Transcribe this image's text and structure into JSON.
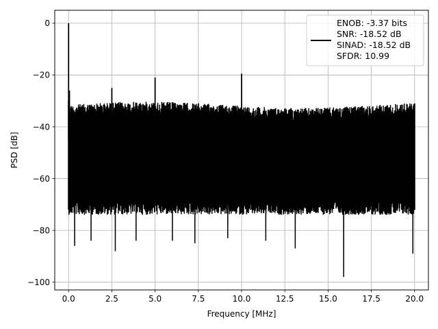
{
  "chart_data": {
    "type": "line",
    "xlabel": "Frequency [MHz]",
    "ylabel": "PSD [dB]",
    "xlim": [
      -0.8,
      20.8
    ],
    "ylim": [
      -103,
      5
    ],
    "xticks": [
      0.0,
      2.5,
      5.0,
      7.5,
      10.0,
      12.5,
      15.0,
      17.5,
      20.0
    ],
    "xtick_labels": [
      "0.0",
      "2.5",
      "5.0",
      "7.5",
      "10.0",
      "12.5",
      "15.0",
      "17.5",
      "20.0"
    ],
    "yticks": [
      0,
      -20,
      -40,
      -60,
      -80,
      -100
    ],
    "ytick_labels": [
      "0",
      "−20",
      "−40",
      "−60",
      "−80",
      "−100"
    ],
    "grid": true,
    "legend_position": "top-right",
    "legend_lines": [
      "ENOB: -3.37 bits",
      "SNR: -18.52 dB",
      "SINAD: -18.52 dB",
      "SFDR: 10.99"
    ],
    "series": [
      {
        "color": "#000000",
        "noise_floor": {
          "x_range": [
            0.0,
            20.0
          ],
          "upper_envelope_db": -30,
          "typical_lower_db": -72,
          "deepest_nulls": [
            {
              "x": 0.35,
              "y": -86
            },
            {
              "x": 1.3,
              "y": -84
            },
            {
              "x": 2.7,
              "y": -88
            },
            {
              "x": 3.9,
              "y": -84
            },
            {
              "x": 6.0,
              "y": -84
            },
            {
              "x": 7.3,
              "y": -85
            },
            {
              "x": 9.2,
              "y": -83
            },
            {
              "x": 11.4,
              "y": -84
            },
            {
              "x": 13.1,
              "y": -87
            },
            {
              "x": 15.9,
              "y": -98
            },
            {
              "x": 19.9,
              "y": -89
            }
          ]
        },
        "spurs": [
          {
            "x": 0.0,
            "y": 0
          },
          {
            "x": 0.05,
            "y": -26
          },
          {
            "x": 2.5,
            "y": -25
          },
          {
            "x": 5.0,
            "y": -21
          },
          {
            "x": 10.0,
            "y": -19.5
          }
        ]
      }
    ]
  }
}
